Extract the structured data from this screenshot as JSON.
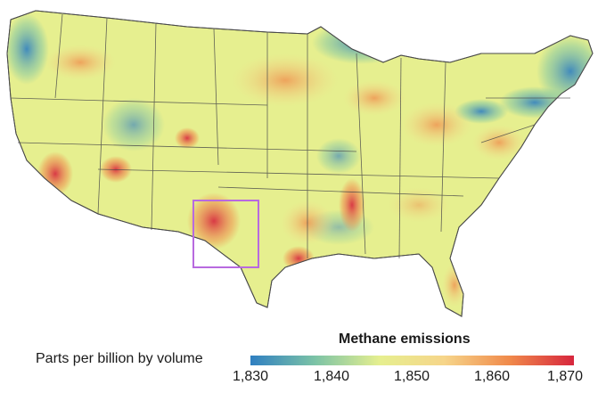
{
  "legend": {
    "title": "Methane emissions",
    "units_label": "Parts per billion by volume",
    "ticks": [
      "1,830",
      "1,840",
      "1,850",
      "1,860",
      "1,870"
    ],
    "scale_min": 1830,
    "scale_max": 1870,
    "color_stops": [
      "#2f7fc1",
      "#7cc3a6",
      "#e6ef8f",
      "#f6d58a",
      "#f08a4b",
      "#d7263d"
    ]
  },
  "map": {
    "region": "Contiguous United States",
    "highlight_box_color": "#b86adf",
    "border_color": "#4a4a4a",
    "land_base_color": "#e6ef8f"
  }
}
